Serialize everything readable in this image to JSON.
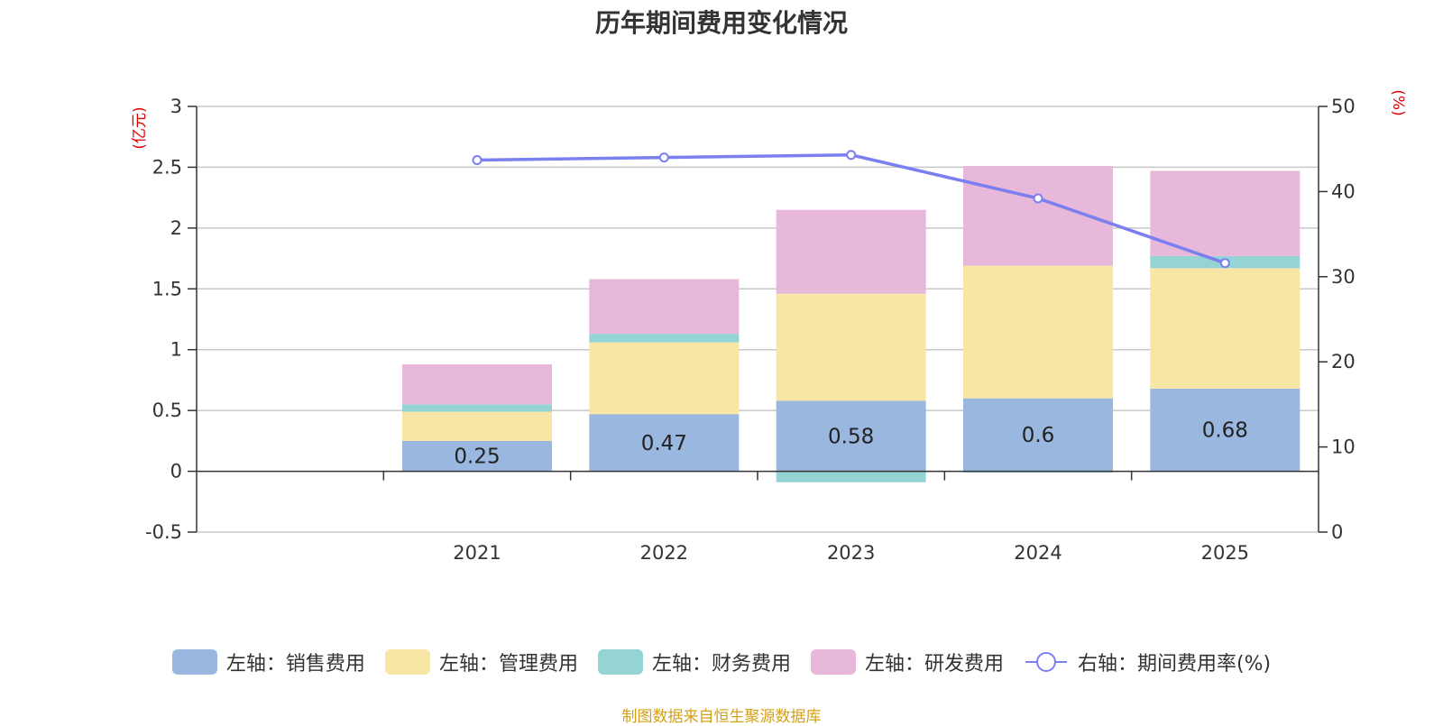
{
  "chart_data": {
    "type": "bar",
    "title": "历年期间费用变化情况",
    "categories": [
      "2021",
      "2022",
      "2023",
      "2024",
      "2025"
    ],
    "left_axis": {
      "unit": "(亿元)",
      "ylim": [
        -0.5,
        3
      ],
      "ticks": [
        -0.5,
        0,
        0.5,
        1,
        1.5,
        2,
        2.5,
        3
      ]
    },
    "right_axis": {
      "unit": "(%)",
      "ylim": [
        0,
        50
      ],
      "ticks": [
        0,
        10,
        20,
        30,
        40,
        50
      ]
    },
    "series": [
      {
        "name": "左轴：销售费用",
        "axis": "left",
        "kind": "bar",
        "color": "#9ab7e0",
        "values": [
          0.25,
          0.47,
          0.58,
          0.6,
          0.68
        ],
        "labels": [
          "0.25",
          "0.47",
          "0.58",
          "0.6",
          "0.68"
        ]
      },
      {
        "name": "左轴：管理费用",
        "axis": "left",
        "kind": "bar",
        "color": "#f8e6a6",
        "values": [
          0.24,
          0.59,
          0.88,
          1.09,
          0.99
        ]
      },
      {
        "name": "左轴：财务费用",
        "axis": "left",
        "kind": "bar",
        "color": "#95d4d4",
        "values": [
          0.06,
          0.07,
          -0.09,
          -0.01,
          0.1
        ]
      },
      {
        "name": "左轴：研发费用",
        "axis": "left",
        "kind": "bar",
        "color": "#e7b8d9",
        "values": [
          0.33,
          0.45,
          0.69,
          0.82,
          0.7
        ]
      },
      {
        "name": "右轴：期间费用率(%)",
        "axis": "right",
        "kind": "line",
        "color": "#7b7ff0",
        "values": [
          43.7,
          44.0,
          44.3,
          39.2,
          31.6
        ]
      }
    ],
    "grid": true,
    "legend_position": "bottom"
  },
  "source_note": "制图数据来自恒生聚源数据库"
}
